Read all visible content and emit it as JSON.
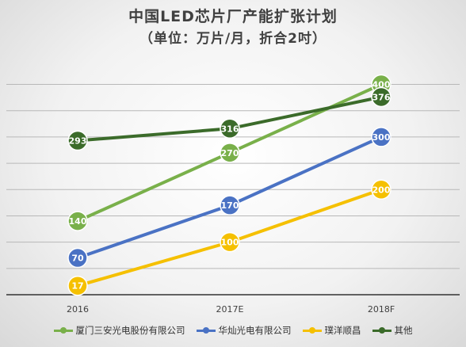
{
  "chart_data": {
    "type": "line",
    "title": "中国LED芯片厂产能扩张计划",
    "subtitle": "（单位：万片/月，折合2吋）",
    "categories": [
      "2016",
      "2017E",
      "2018F"
    ],
    "ylim": [
      0,
      440
    ],
    "grid": true,
    "legend_position": "bottom",
    "series": [
      {
        "name": "厦门三安光电股份有限公司",
        "values": [
          140,
          270,
          400
        ],
        "color": "#79b04a"
      },
      {
        "name": "华灿光电有限公司",
        "values": [
          70,
          170,
          300
        ],
        "color": "#4a72c4"
      },
      {
        "name": "璞洋顺昌",
        "values": [
          17,
          100,
          200
        ],
        "color": "#f5c000"
      },
      {
        "name": "其他",
        "values": [
          293,
          316,
          376
        ],
        "color": "#3b6b2a"
      }
    ]
  }
}
